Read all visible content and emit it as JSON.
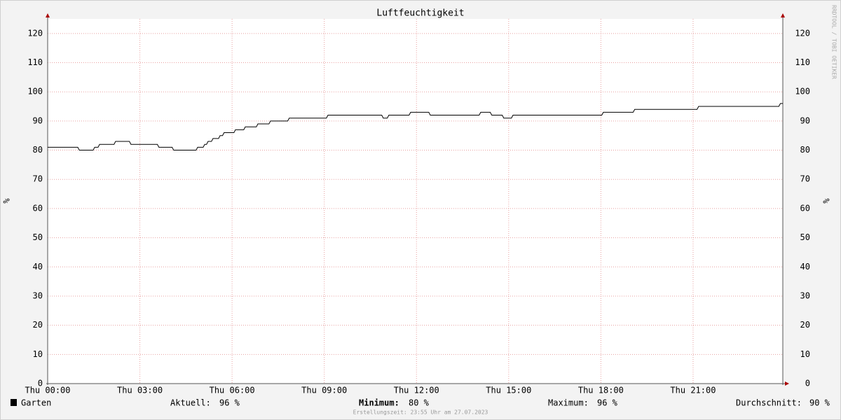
{
  "chart_data": {
    "type": "line",
    "title": "Luftfeuchtigkeit",
    "y_label": "%",
    "y2_label": "%",
    "watermark": "RRDTOOL / TOBI OETIKER",
    "footer": "Erstellungszeit: 23:55 Uhr am 27.07.2023",
    "xlim": [
      0,
      23.92
    ],
    "ylim": [
      0,
      125
    ],
    "grid": true,
    "xticks": [
      {
        "value": 0,
        "label": "Thu 00:00"
      },
      {
        "value": 3,
        "label": "Thu 03:00"
      },
      {
        "value": 6,
        "label": "Thu 06:00"
      },
      {
        "value": 9,
        "label": "Thu 09:00"
      },
      {
        "value": 12,
        "label": "Thu 12:00"
      },
      {
        "value": 15,
        "label": "Thu 15:00"
      },
      {
        "value": 18,
        "label": "Thu 18:00"
      },
      {
        "value": 21,
        "label": "Thu 21:00"
      }
    ],
    "yticks": [
      0,
      10,
      20,
      30,
      40,
      50,
      60,
      70,
      80,
      90,
      100,
      110,
      120
    ],
    "x": [
      0,
      0.98,
      1.03,
      1.48,
      1.53,
      1.64,
      1.69,
      2.16,
      2.21,
      2.66,
      2.71,
      3.57,
      3.62,
      4.05,
      4.1,
      4.83,
      4.88,
      5.06,
      5.11,
      5.17,
      5.22,
      5.33,
      5.38,
      5.56,
      5.61,
      5.69,
      5.74,
      6.06,
      6.11,
      6.38,
      6.43,
      6.79,
      6.84,
      7.2,
      7.25,
      7.81,
      7.86,
      9.07,
      9.12,
      10.87,
      10.92,
      11.05,
      11.1,
      11.76,
      11.81,
      12.4,
      12.45,
      14.04,
      14.09,
      14.4,
      14.45,
      14.79,
      14.84,
      15.09,
      15.14,
      18.03,
      18.08,
      19.05,
      19.1,
      21.13,
      21.18,
      23.79,
      23.84,
      23.92
    ],
    "series": [
      {
        "name": "Garten",
        "color": "#000000",
        "values": [
          81,
          81,
          80,
          80,
          81,
          81,
          82,
          82,
          83,
          83,
          82,
          82,
          81,
          81,
          80,
          80,
          81,
          81,
          82,
          82,
          83,
          83,
          84,
          84,
          85,
          85,
          86,
          86,
          87,
          87,
          88,
          88,
          89,
          89,
          90,
          90,
          91,
          91,
          92,
          92,
          91,
          91,
          92,
          92,
          93,
          93,
          92,
          92,
          93,
          93,
          92,
          92,
          91,
          91,
          92,
          92,
          93,
          93,
          94,
          94,
          95,
          95,
          96,
          96
        ]
      }
    ],
    "stats": {
      "labels": [
        "Aktuell:",
        "Minimum:",
        "Maximum:",
        "Durchschnitt:"
      ],
      "values": [
        96,
        80,
        96,
        90
      ],
      "value_labels": [
        "96 %",
        "80 %",
        "96 %",
        "90 %"
      ]
    }
  }
}
